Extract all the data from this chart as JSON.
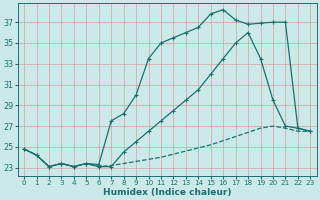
{
  "xlabel": "Humidex (Indice chaleur)",
  "bg_color": "#cce9e9",
  "grid_color": "#d4a0a0",
  "line_color": "#1a7070",
  "xlim": [
    -0.5,
    23.5
  ],
  "ylim": [
    22.2,
    38.8
  ],
  "yticks": [
    23,
    25,
    27,
    29,
    31,
    33,
    35,
    37
  ],
  "xticks": [
    0,
    1,
    2,
    3,
    4,
    5,
    6,
    7,
    8,
    9,
    10,
    11,
    12,
    13,
    14,
    15,
    16,
    17,
    18,
    19,
    20,
    21,
    22,
    23
  ],
  "line1_x": [
    0,
    1,
    2,
    3,
    4,
    5,
    6,
    7,
    8,
    9,
    10,
    11,
    12,
    13,
    14,
    15,
    16,
    17,
    18,
    19,
    20,
    21,
    22,
    23
  ],
  "line1_y": [
    24.8,
    24.2,
    23.1,
    23.4,
    23.1,
    23.4,
    23.3,
    27.5,
    28.2,
    30.0,
    33.5,
    35.0,
    35.5,
    36.0,
    36.5,
    37.8,
    38.2,
    37.2,
    36.8,
    36.9,
    37.0,
    37.0,
    26.8,
    26.5
  ],
  "line2_x": [
    0,
    1,
    2,
    3,
    4,
    5,
    6,
    7,
    8,
    9,
    10,
    11,
    12,
    13,
    14,
    15,
    16,
    17,
    18,
    19,
    20,
    21,
    22,
    23
  ],
  "line2_y": [
    24.8,
    24.2,
    23.1,
    23.4,
    23.1,
    23.4,
    23.1,
    23.1,
    24.5,
    25.5,
    26.5,
    27.5,
    28.5,
    29.5,
    30.5,
    32.0,
    33.5,
    35.0,
    36.0,
    33.5,
    29.5,
    27.0,
    26.8,
    26.5
  ],
  "line3_x": [
    0,
    1,
    2,
    3,
    4,
    5,
    6,
    7,
    8,
    9,
    10,
    11,
    12,
    13,
    14,
    15,
    16,
    17,
    18,
    19,
    20,
    21,
    22,
    23
  ],
  "line3_y": [
    24.8,
    24.2,
    23.1,
    23.4,
    23.1,
    23.4,
    23.1,
    23.2,
    23.4,
    23.6,
    23.8,
    24.0,
    24.3,
    24.6,
    24.9,
    25.2,
    25.6,
    26.0,
    26.4,
    26.8,
    27.0,
    26.8,
    26.5,
    26.5
  ],
  "lw": 0.9,
  "ms": 3.5
}
